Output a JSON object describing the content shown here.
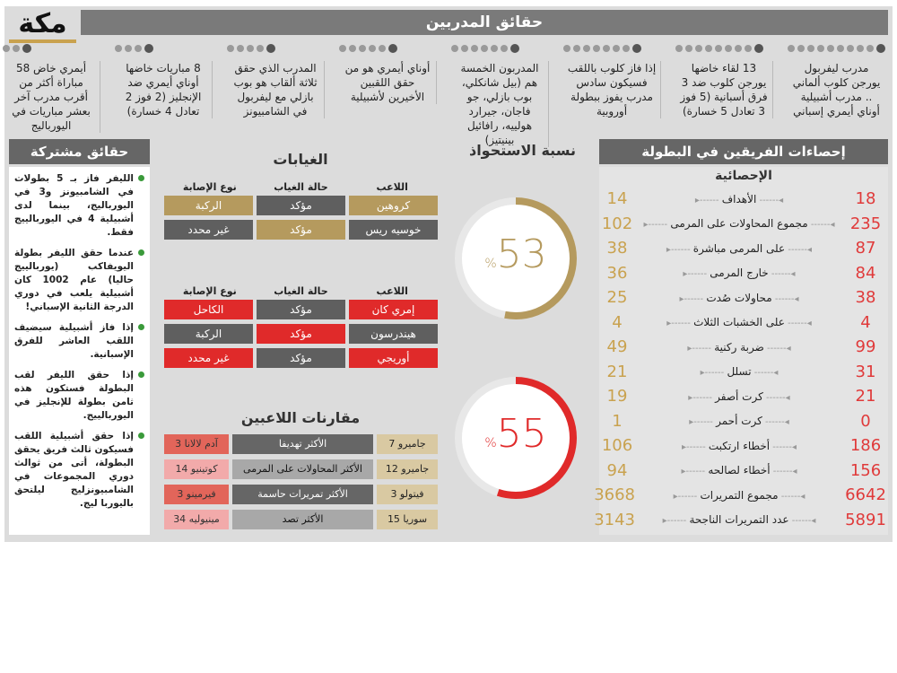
{
  "logo": {
    "text": "مكة"
  },
  "header": {
    "title": "حقائق المدربين"
  },
  "coach_facts": [
    {
      "text": "مدرب ليفربول يورجن كلوب ألماني .. مدرب أشبيلية أوناي أيمري إسباني",
      "dots": 10
    },
    {
      "text": "13 لقاء خاضها يورجن كلوب ضد 3 فرق أسبانية (5 فوز 3 تعادل 5 خسارة)",
      "dots": 9
    },
    {
      "text": "إذا فاز كلوب باللقب فسيكون سادس مدرب يفوز ببطولة أوروبية",
      "dots": 8
    },
    {
      "text": "المدربون الخمسة هم (بيل شانكلي، بوب بازلي، جو فاجان، جيرارد هولييه، رافائيل بينيتيز)",
      "dots": 7
    },
    {
      "text": "أوناي أيمري هو من حقق اللقبين الأخيرين لأشبيلية",
      "dots": 6
    },
    {
      "text": "المدرب الذي حقق ثلاثة ألقاب هو بوب بازلي مع ليفربول في الشامبيونز",
      "dots": 5
    },
    {
      "text": "8 مباريات خاضها أوناي أيمري ضد الإنجليز (2 فوز 2 تعادل 4 خسارة)",
      "dots": 4
    },
    {
      "text": "أيمري خاض 58 مباراة أكثر من أقرب مدرب آخر بعشر مباريات في اليورباليج",
      "dots": 3
    }
  ],
  "stats": {
    "title": "إحصاءات الفريقين في البطولة",
    "subtitle": "الإحصائية",
    "rows": [
      {
        "label": "الأهداف",
        "left": "14",
        "right": "18"
      },
      {
        "label": "مجموع المحاولات على المرمى",
        "left": "102",
        "right": "235"
      },
      {
        "label": "على المرمى مباشرة",
        "left": "38",
        "right": "87"
      },
      {
        "label": "خارج المرمى",
        "left": "36",
        "right": "84"
      },
      {
        "label": "محاولات صُدت",
        "left": "25",
        "right": "38"
      },
      {
        "label": "على الخشبات الثلاث",
        "left": "4",
        "right": "4"
      },
      {
        "label": "ضربة ركنية",
        "left": "49",
        "right": "99"
      },
      {
        "label": "تسلل",
        "left": "21",
        "right": "31"
      },
      {
        "label": "كرت أصفر",
        "left": "19",
        "right": "21"
      },
      {
        "label": "كرت أحمر",
        "left": "1",
        "right": "0"
      },
      {
        "label": "أخطاء ارتكبت",
        "left": "106",
        "right": "186"
      },
      {
        "label": "أخطاء لصالحه",
        "left": "94",
        "right": "156"
      },
      {
        "label": "مجموع التمريرات",
        "left": "3668",
        "right": "6642"
      },
      {
        "label": "عدد التمريرات الناجحة",
        "left": "3143",
        "right": "5891"
      }
    ]
  },
  "possession": {
    "title": "نسبة الاستحواذ",
    "gauges": [
      {
        "value": 53,
        "value_label": "53",
        "percent_sign": "%",
        "color": "#b59a5e"
      },
      {
        "value": 55,
        "value_label": "55",
        "percent_sign": "%",
        "color": "#e02a2a"
      }
    ]
  },
  "absences": {
    "title": "الغيابات",
    "headers": [
      "اللاعب",
      "حالة الغياب",
      "نوع الإصابة"
    ],
    "team1": [
      {
        "player": "كروهين",
        "status": "مؤكد",
        "injury": "الركبة"
      },
      {
        "player": "خوسيه ريس",
        "status": "مؤكد",
        "injury": "غير محدد"
      }
    ],
    "team2": [
      {
        "player": "إمري كان",
        "status": "مؤكد",
        "injury": "الكاحل"
      },
      {
        "player": "هيندرسون",
        "status": "مؤكد",
        "injury": "الركبة"
      },
      {
        "player": "أوريجي",
        "status": "مؤكد",
        "injury": "غير محدد"
      }
    ]
  },
  "comparisons": {
    "title": "مقارنات اللاعبين",
    "rows": [
      {
        "right": "جاميرو 7",
        "metric": "الأكثر تهديفا",
        "left": "آدم لالانا 3"
      },
      {
        "right": "جاميرو 12",
        "metric": "الأكثر المحاولات على المرمى",
        "left": "كوتينيو 14"
      },
      {
        "right": "فيتولو 3",
        "metric": "الأكثر تمريرات حاسمة",
        "left": "فيرمينو 3"
      },
      {
        "right": "سوريا 15",
        "metric": "الأكثر تصد",
        "left": "مينيوليه 34"
      }
    ]
  },
  "shared_facts": {
    "title": "حقائق مشتركة",
    "items": [
      "الليفر فاز بـ 5 بطولات في الشامبيونز و3 في اليورباليج، بينما لدى أشبيلية 4 في اليوربالييج فقط.",
      "عندما حقق الليفر بطولة اليويفاكب (يوربالييج حاليا) عام 1002 كان أشبيلية يلعب في دوري الدرجة الثانية الإسباني!",
      "إذا فاز أشبيلية سيضيف اللقب العاشر للفرق الإسبانية.",
      "إذا حقق الليفر لقب البطولة فستكون هذه ثامن بطولة للإنجليز في اليوربالييج.",
      "إذا حقق أشبيلية اللقب فسيكون ثالث فريق يحقق البطولة، أتى من ثوالث دوري المجموعات في الشامبيونزليج ليلتحق باليوربا ليج."
    ]
  }
}
